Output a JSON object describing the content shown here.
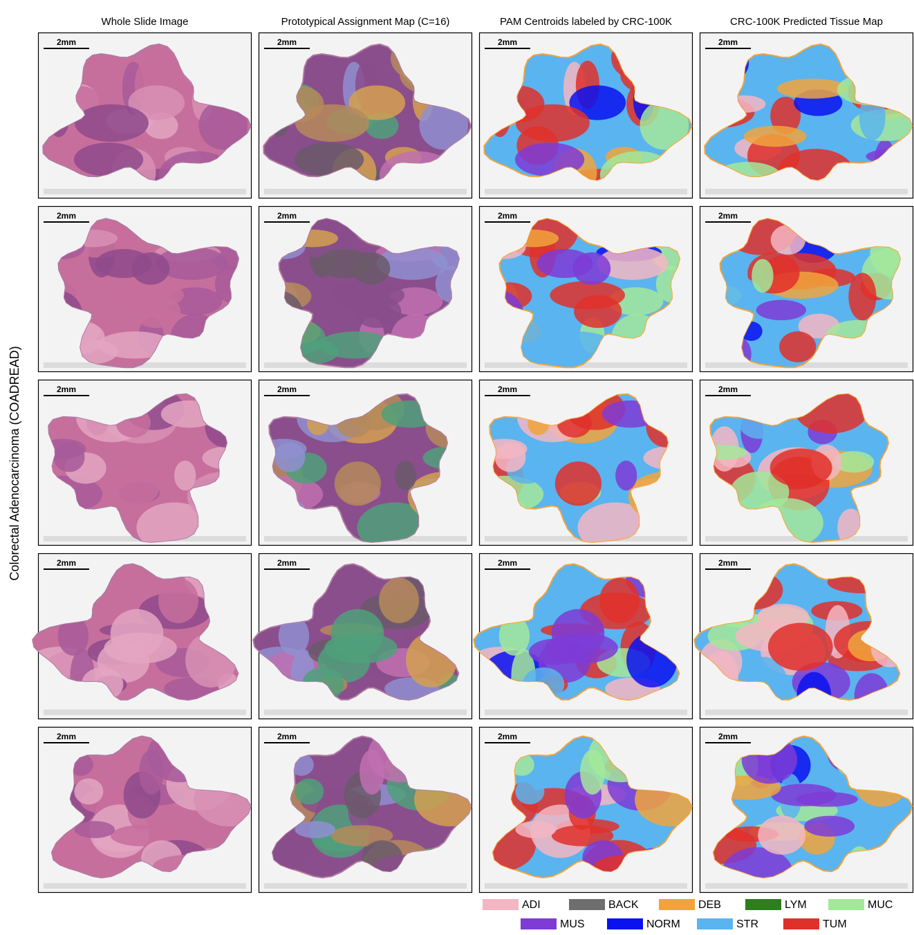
{
  "columns": [
    "Whole Slide Image",
    "Prototypical Assignment Map (C=16)",
    "PAM Centroids labeled by CRC-100K",
    "CRC-100K Predicted Tissue Map"
  ],
  "row_label": "Colorectal Adenocarcinoma (COADREAD)",
  "rows": [
    {
      "scale_bar": "2mm"
    },
    {
      "scale_bar": "2mm"
    },
    {
      "scale_bar": "2mm"
    },
    {
      "scale_bar": "2mm"
    },
    {
      "scale_bar": "2mm"
    }
  ],
  "legend": [
    {
      "label": "ADI",
      "color": "#f4b6c2"
    },
    {
      "label": "BACK",
      "color": "#6e6e6e"
    },
    {
      "label": "DEB",
      "color": "#f0a43c"
    },
    {
      "label": "LYM",
      "color": "#2e7d1e"
    },
    {
      "label": "MUC",
      "color": "#a3e89a"
    },
    {
      "label": "MUS",
      "color": "#7e3bd6"
    },
    {
      "label": "NORM",
      "color": "#0a12f0"
    },
    {
      "label": "STR",
      "color": "#5ab4ef"
    },
    {
      "label": "TUM",
      "color": "#e0302a"
    }
  ]
}
